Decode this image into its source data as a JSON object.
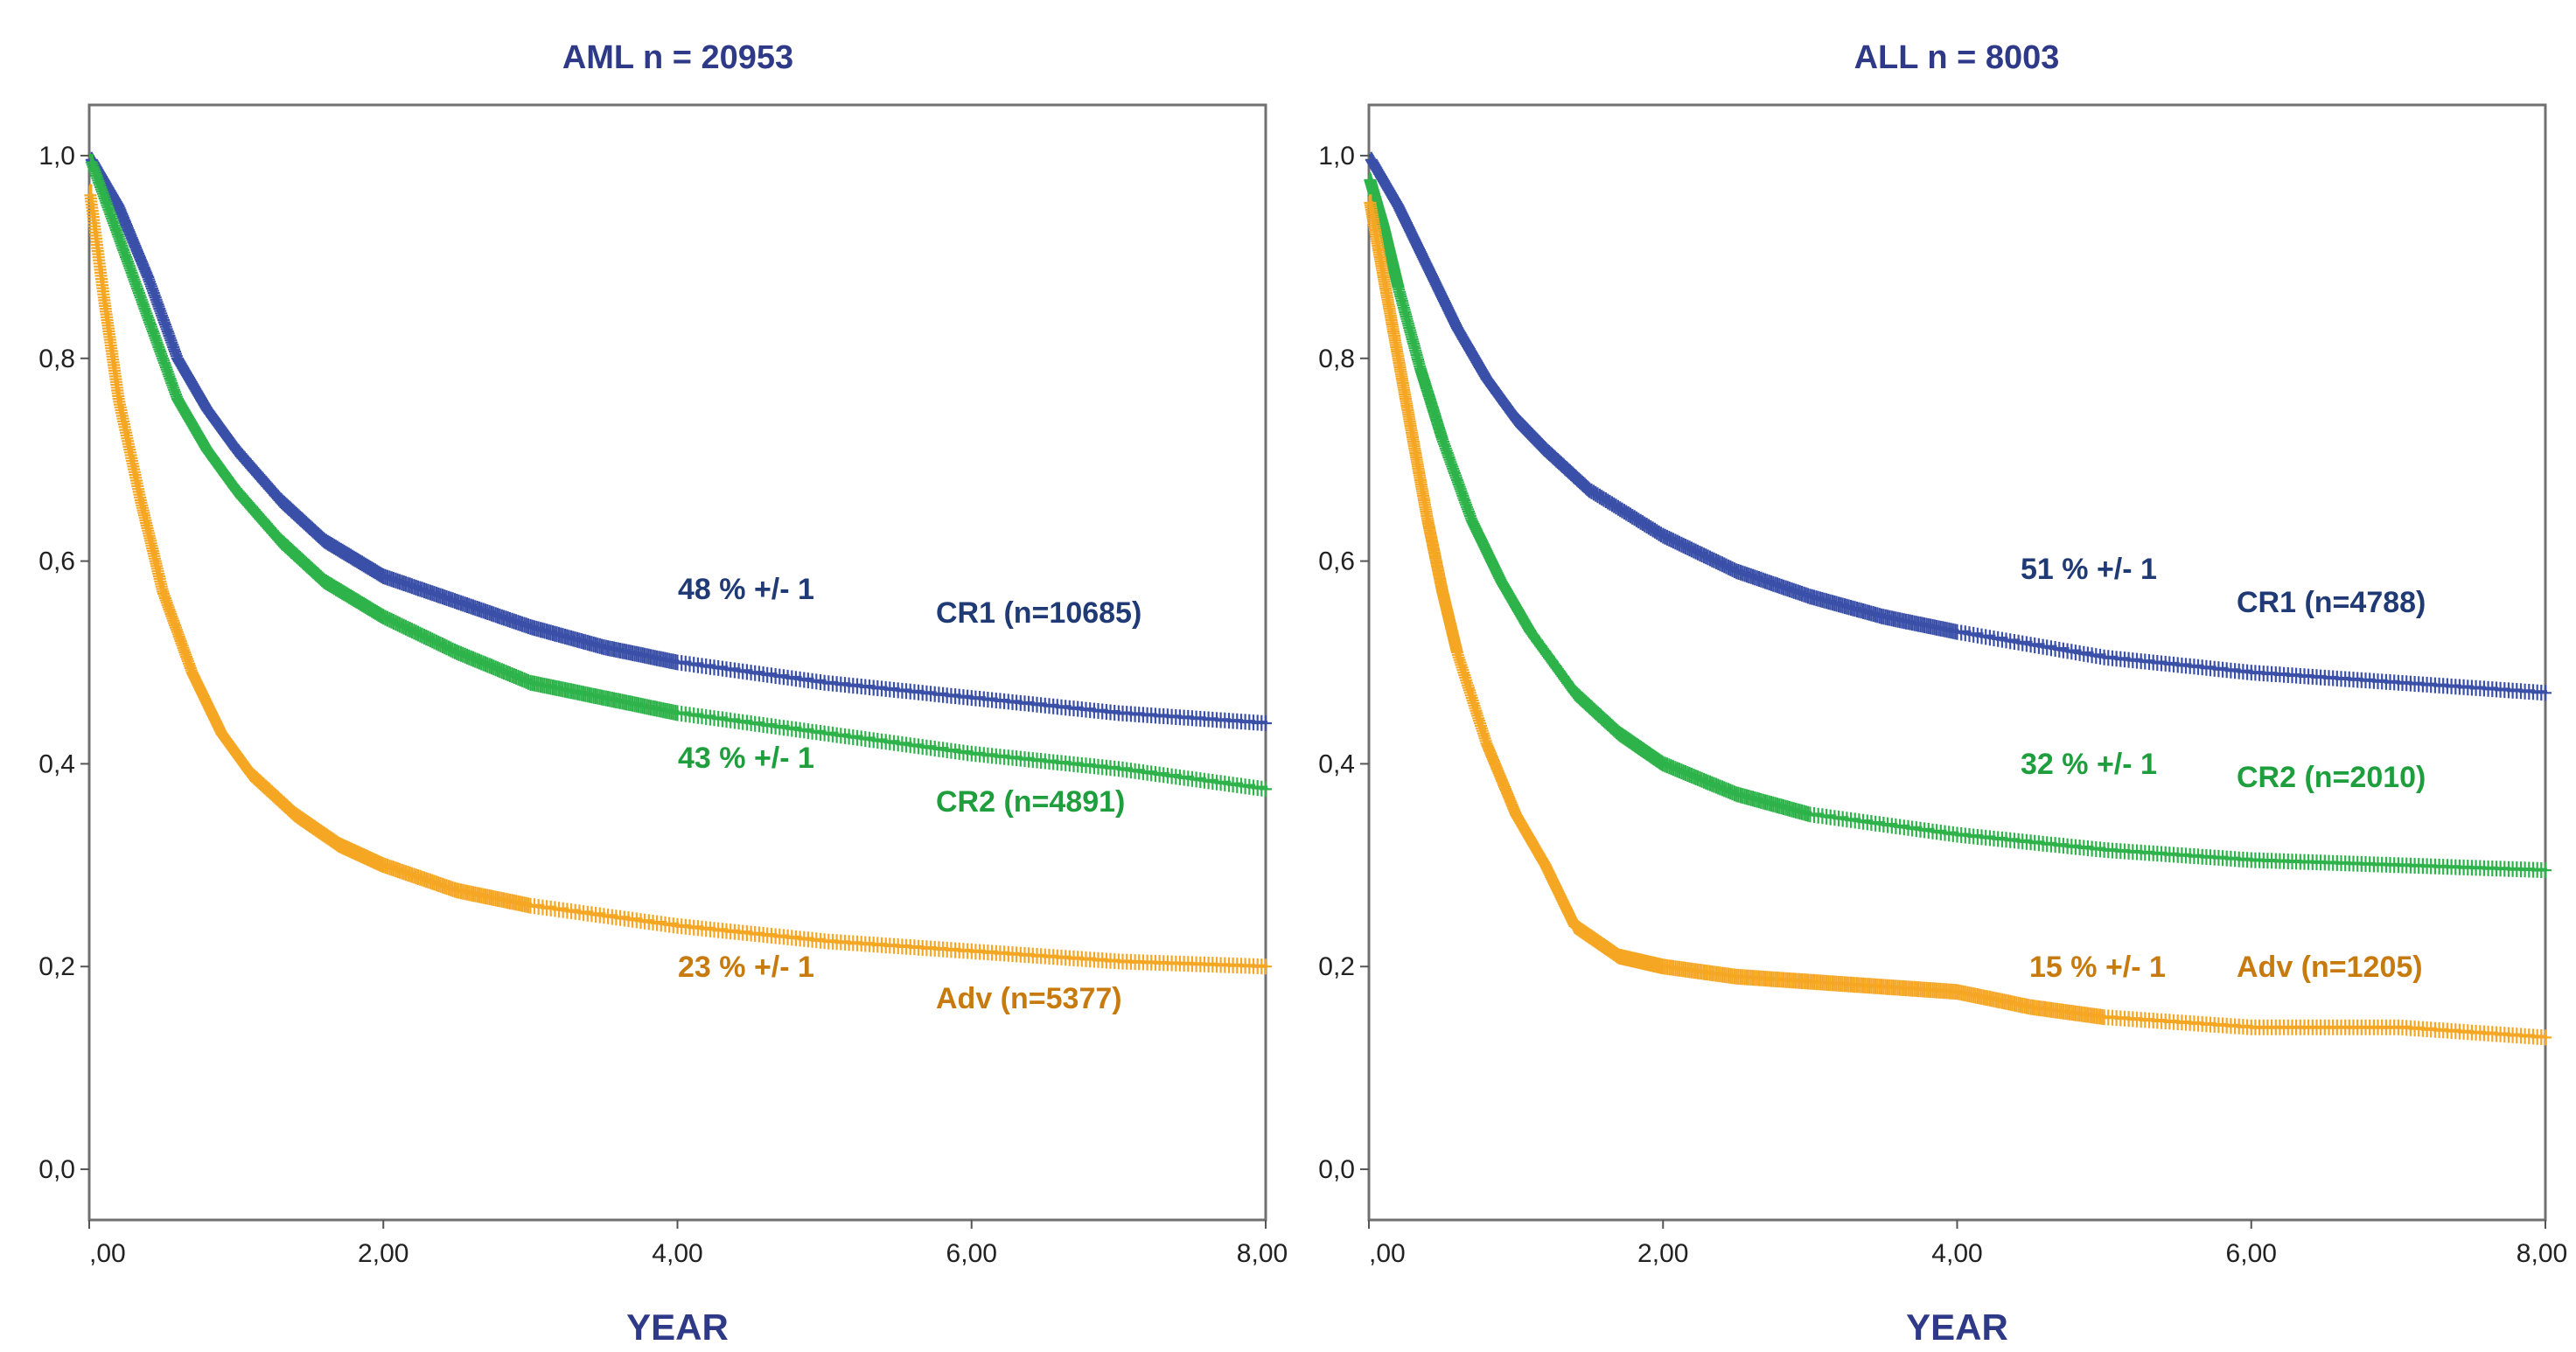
{
  "chart_data": [
    {
      "type": "line",
      "title": "AML n = 20953",
      "xlabel": "YEAR",
      "ylabel": "",
      "xlim": [
        0,
        8
      ],
      "ylim": [
        -0.05,
        1.05
      ],
      "x_ticks": [
        ",00",
        "2,00",
        "4,00",
        "6,00",
        "8,00"
      ],
      "y_ticks": [
        "0,0",
        "0,2",
        "0,4",
        "0,6",
        "0,8",
        "1,0"
      ],
      "grid": false,
      "series": [
        {
          "name": "CR1 (n=10685)",
          "color": "#3A4FA8",
          "label_color": "#1F3A75",
          "annotation": "48 % +/- 1",
          "x": [
            0,
            0.2,
            0.4,
            0.6,
            0.8,
            1.0,
            1.3,
            1.6,
            2.0,
            2.5,
            3.0,
            3.5,
            4.0,
            5.0,
            6.0,
            7.0,
            8.0
          ],
          "y": [
            1.0,
            0.95,
            0.88,
            0.8,
            0.75,
            0.71,
            0.66,
            0.62,
            0.585,
            0.56,
            0.535,
            0.515,
            0.5,
            0.48,
            0.465,
            0.45,
            0.44
          ]
        },
        {
          "name": "CR2 (n=4891)",
          "color": "#2DB34A",
          "label_color": "#1E9E3C",
          "annotation": "43 % +/- 1",
          "x": [
            0,
            0.2,
            0.4,
            0.6,
            0.8,
            1.0,
            1.3,
            1.6,
            2.0,
            2.5,
            3.0,
            3.5,
            4.0,
            5.0,
            6.0,
            7.0,
            8.0
          ],
          "y": [
            1.0,
            0.92,
            0.84,
            0.76,
            0.71,
            0.67,
            0.62,
            0.58,
            0.545,
            0.51,
            0.48,
            0.465,
            0.45,
            0.43,
            0.41,
            0.395,
            0.375
          ]
        },
        {
          "name": "Adv (n=5377)",
          "color": "#F5A623",
          "label_color": "#C77A0E",
          "annotation": "23 % +/- 1",
          "x": [
            0,
            0.1,
            0.2,
            0.35,
            0.5,
            0.7,
            0.9,
            1.1,
            1.4,
            1.7,
            2.0,
            2.5,
            3.0,
            4.0,
            5.0,
            6.0,
            7.0,
            8.0
          ],
          "y": [
            0.97,
            0.86,
            0.76,
            0.66,
            0.57,
            0.49,
            0.43,
            0.39,
            0.35,
            0.32,
            0.3,
            0.275,
            0.26,
            0.24,
            0.225,
            0.215,
            0.205,
            0.2
          ]
        }
      ]
    },
    {
      "type": "line",
      "title": "ALL n = 8003",
      "xlabel": "YEAR",
      "ylabel": "",
      "xlim": [
        0,
        8
      ],
      "ylim": [
        -0.05,
        1.05
      ],
      "x_ticks": [
        ",00",
        "2,00",
        "4,00",
        "6,00",
        "8,00"
      ],
      "y_ticks": [
        "0,0",
        "0,2",
        "0,4",
        "0,6",
        "0,8",
        "1,0"
      ],
      "grid": false,
      "series": [
        {
          "name": "CR1 (n=4788)",
          "color": "#3A4FA8",
          "label_color": "#1F3A75",
          "annotation": "51 % +/- 1",
          "x": [
            0,
            0.2,
            0.4,
            0.6,
            0.8,
            1.0,
            1.2,
            1.5,
            2.0,
            2.5,
            3.0,
            3.5,
            4.0,
            5.0,
            6.0,
            7.0,
            8.0
          ],
          "y": [
            1.0,
            0.95,
            0.89,
            0.83,
            0.78,
            0.74,
            0.71,
            0.67,
            0.625,
            0.59,
            0.565,
            0.545,
            0.53,
            0.505,
            0.49,
            0.48,
            0.47
          ]
        },
        {
          "name": "CR2 (n=2010)",
          "color": "#2DB34A",
          "label_color": "#1E9E3C",
          "annotation": "32 % +/- 1",
          "x": [
            0,
            0.1,
            0.2,
            0.35,
            0.5,
            0.7,
            0.9,
            1.1,
            1.4,
            1.7,
            2.0,
            2.5,
            3.0,
            4.0,
            5.0,
            6.0,
            7.0,
            8.0
          ],
          "y": [
            0.98,
            0.93,
            0.87,
            0.79,
            0.72,
            0.64,
            0.58,
            0.53,
            0.47,
            0.43,
            0.4,
            0.37,
            0.35,
            0.33,
            0.315,
            0.305,
            0.3,
            0.295
          ]
        },
        {
          "name": "Adv (n=1205)",
          "color": "#F5A623",
          "label_color": "#C77A0E",
          "annotation": "15 % +/- 1",
          "x": [
            0,
            0.1,
            0.2,
            0.3,
            0.4,
            0.5,
            0.6,
            0.8,
            1.0,
            1.2,
            1.4,
            1.7,
            2.0,
            2.5,
            3.0,
            3.5,
            4.0,
            4.5,
            5.0,
            6.0,
            7.0,
            8.0
          ],
          "y": [
            0.96,
            0.88,
            0.8,
            0.72,
            0.64,
            0.57,
            0.51,
            0.42,
            0.35,
            0.3,
            0.24,
            0.21,
            0.2,
            0.19,
            0.185,
            0.18,
            0.175,
            0.16,
            0.15,
            0.14,
            0.14,
            0.13
          ]
        }
      ]
    }
  ]
}
